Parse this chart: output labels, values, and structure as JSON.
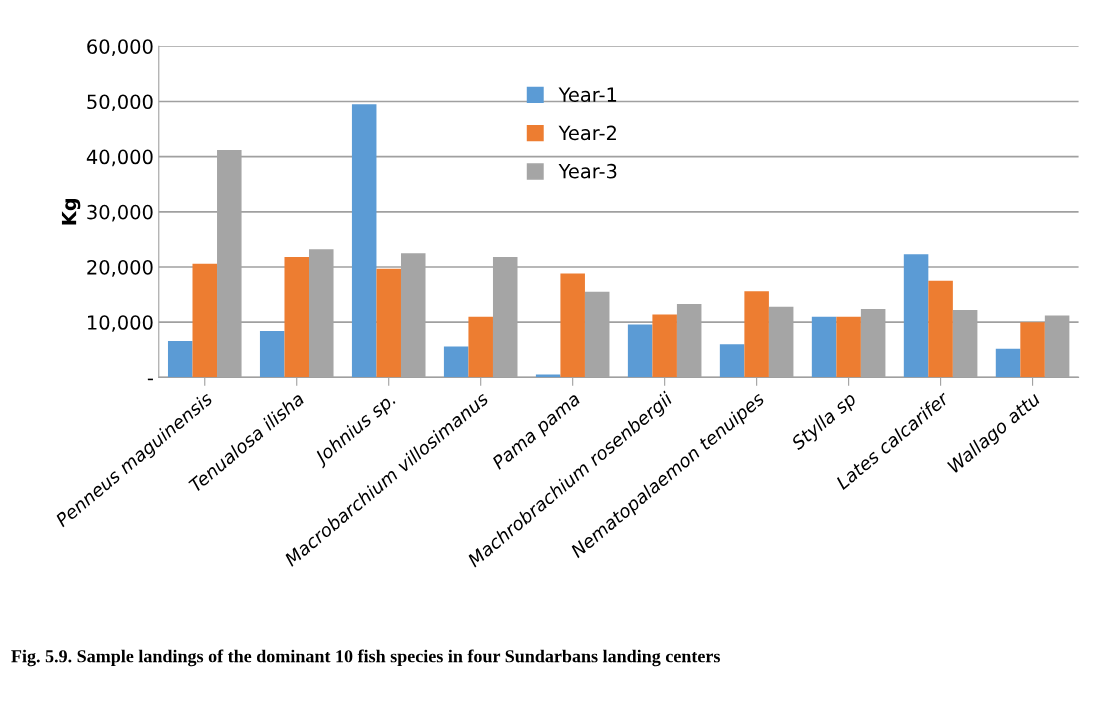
{
  "chart_data": {
    "type": "bar",
    "ylabel": "Kg",
    "categories": [
      "Penneus maguinensis",
      "Tenualosa ilisha",
      "Johnius sp.",
      "Macrobarchium villosimanus",
      "Pama pama",
      "Machrobrachium rosenbergii",
      "Nematopalaemon tenuipes",
      "Stylla sp",
      "Lates calcarifer",
      "Wallago attu"
    ],
    "series": [
      {
        "name": "Year-1",
        "color": "#5b9bd5",
        "values": [
          6600,
          8400,
          49500,
          5600,
          500,
          9600,
          6000,
          11000,
          22300,
          5200
        ]
      },
      {
        "name": "Year-2",
        "color": "#ed7d31",
        "values": [
          20600,
          21800,
          19700,
          11000,
          18800,
          11400,
          15600,
          11000,
          17500,
          10000
        ]
      },
      {
        "name": "Year-3",
        "color": "#a5a5a5",
        "values": [
          41200,
          23200,
          22500,
          21800,
          15500,
          13300,
          12800,
          12400,
          12200,
          11200
        ]
      }
    ],
    "ylim": [
      0,
      60000
    ],
    "yticks": [
      {
        "value": 0,
        "label": "-"
      },
      {
        "value": 10000,
        "label": "10,000"
      },
      {
        "value": 20000,
        "label": "20,000"
      },
      {
        "value": 30000,
        "label": "30,000"
      },
      {
        "value": 40000,
        "label": "40,000"
      },
      {
        "value": 50000,
        "label": "50,000"
      },
      {
        "value": 60000,
        "label": "60,000"
      }
    ],
    "grid": "y",
    "legend": "top",
    "annotations": [
      "Fig. 5.9. Sample landings of the dominant 10 fish species in four Sundarbans landing centers"
    ]
  }
}
